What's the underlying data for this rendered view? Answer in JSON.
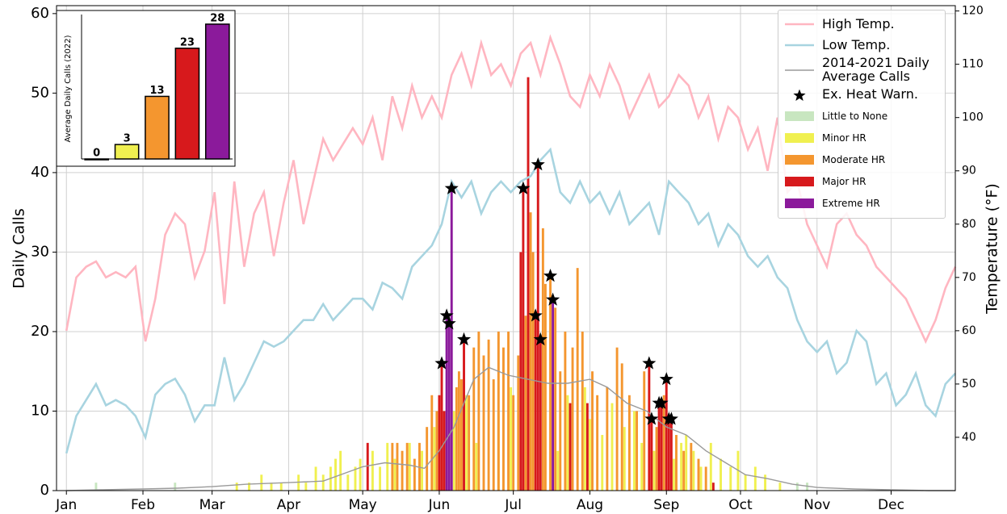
{
  "chart_data": [
    {
      "type": "bar",
      "ylabel": "Daily Calls",
      "y2label": "Temperature (°F)",
      "xlim": [
        -3,
        361
      ],
      "xticks": [
        {
          "value": 1,
          "label": "Jan"
        },
        {
          "value": 32,
          "label": "Feb"
        },
        {
          "value": 60,
          "label": "Mar"
        },
        {
          "value": 91,
          "label": "Apr"
        },
        {
          "value": 121,
          "label": "May"
        },
        {
          "value": 152,
          "label": "Jun"
        },
        {
          "value": 182,
          "label": "Jul"
        },
        {
          "value": 213,
          "label": "Aug"
        },
        {
          "value": 244,
          "label": "Sep"
        },
        {
          "value": 274,
          "label": "Oct"
        },
        {
          "value": 305,
          "label": "Nov"
        },
        {
          "value": 335,
          "label": "Dec"
        }
      ],
      "ylim": [
        0,
        61
      ],
      "yticks": [
        0,
        10,
        20,
        30,
        40,
        50,
        60
      ],
      "y2lim": [
        30,
        121
      ],
      "y2ticks": [
        40,
        50,
        60,
        70,
        80,
        90,
        100,
        110,
        120
      ],
      "grid": true,
      "legend": "upper right",
      "series": [
        {
          "name": "High Temp.",
          "type": "line",
          "axis": "y2",
          "color": "#ffb6c1",
          "x": [
            1,
            5,
            9,
            13,
            17,
            21,
            25,
            29,
            33,
            37,
            41,
            45,
            49,
            53,
            57,
            61,
            65,
            69,
            73,
            77,
            81,
            85,
            89,
            93,
            97,
            101,
            105,
            109,
            113,
            117,
            121,
            125,
            129,
            133,
            137,
            141,
            145,
            149,
            153,
            157,
            161,
            165,
            169,
            173,
            177,
            181,
            185,
            189,
            193,
            197,
            201,
            205,
            209,
            213,
            217,
            221,
            225,
            229,
            233,
            237,
            241,
            245,
            249,
            253,
            257,
            261,
            265,
            269,
            273,
            277,
            281,
            285,
            289,
            293,
            297,
            301,
            305,
            309,
            313,
            317,
            321,
            325,
            329,
            333,
            337,
            341,
            345,
            349,
            353,
            357,
            361
          ],
          "values": [
            60,
            70,
            72,
            73,
            70,
            71,
            70,
            72,
            58,
            66,
            78,
            82,
            80,
            70,
            75,
            86,
            65,
            88,
            72,
            82,
            86,
            74,
            84,
            92,
            80,
            88,
            96,
            92,
            95,
            98,
            95,
            100,
            92,
            104,
            98,
            106,
            100,
            104,
            100,
            108,
            112,
            106,
            114,
            108,
            110,
            106,
            112,
            114,
            108,
            115,
            110,
            104,
            102,
            108,
            104,
            110,
            106,
            100,
            104,
            108,
            102,
            104,
            108,
            106,
            100,
            104,
            96,
            102,
            100,
            94,
            98,
            90,
            100,
            86,
            88,
            80,
            76,
            72,
            80,
            82,
            78,
            76,
            72,
            70,
            68,
            66,
            62,
            58,
            62,
            68,
            72
          ]
        },
        {
          "name": "Low Temp.",
          "type": "line",
          "axis": "y2",
          "color": "#a8d4e0",
          "x": [
            1,
            5,
            9,
            13,
            17,
            21,
            25,
            29,
            33,
            37,
            41,
            45,
            49,
            53,
            57,
            61,
            65,
            69,
            73,
            77,
            81,
            85,
            89,
            93,
            97,
            101,
            105,
            109,
            113,
            117,
            121,
            125,
            129,
            133,
            137,
            141,
            145,
            149,
            153,
            157,
            161,
            165,
            169,
            173,
            177,
            181,
            185,
            189,
            193,
            197,
            201,
            205,
            209,
            213,
            217,
            221,
            225,
            229,
            233,
            237,
            241,
            245,
            249,
            253,
            257,
            261,
            265,
            269,
            273,
            277,
            281,
            285,
            289,
            293,
            297,
            301,
            305,
            309,
            313,
            317,
            321,
            325,
            329,
            333,
            337,
            341,
            345,
            349,
            353,
            357,
            361
          ],
          "values": [
            37,
            44,
            47,
            50,
            46,
            47,
            46,
            44,
            40,
            48,
            50,
            51,
            48,
            43,
            46,
            46,
            55,
            47,
            50,
            54,
            58,
            57,
            58,
            60,
            62,
            62,
            65,
            62,
            64,
            66,
            66,
            64,
            69,
            68,
            66,
            72,
            74,
            76,
            80,
            88,
            85,
            88,
            82,
            86,
            88,
            86,
            88,
            89,
            92,
            94,
            86,
            84,
            88,
            84,
            86,
            82,
            86,
            80,
            82,
            84,
            78,
            88,
            86,
            84,
            80,
            82,
            76,
            80,
            78,
            74,
            72,
            74,
            70,
            68,
            62,
            58,
            56,
            58,
            52,
            54,
            60,
            58,
            50,
            52,
            46,
            48,
            52,
            46,
            44,
            50,
            52
          ]
        },
        {
          "name": "2014-2021 Daily Average Calls",
          "type": "line",
          "color": "#9a9a9a",
          "x": [
            1,
            15,
            32,
            46,
            60,
            74,
            91,
            105,
            121,
            130,
            140,
            146,
            152,
            158,
            166,
            172,
            180,
            188,
            196,
            204,
            213,
            220,
            228,
            236,
            244,
            252,
            260,
            268,
            276,
            285,
            295,
            305,
            320,
            335,
            350,
            361
          ],
          "values": [
            0,
            0.1,
            0.2,
            0.3,
            0.5,
            0.8,
            1,
            1.2,
            3,
            3.5,
            3.2,
            2.8,
            5,
            8,
            14,
            15.5,
            14.5,
            14,
            13.5,
            13.5,
            14,
            13,
            11,
            10,
            8,
            7,
            5,
            3.5,
            2,
            1.5,
            0.8,
            0.4,
            0.2,
            0.1,
            0,
            0
          ]
        },
        {
          "name": "Ex. Heat Warn.",
          "type": "scatter",
          "color": "#000000",
          "x": [
            153,
            155,
            156,
            157,
            162,
            186,
            191,
            192,
            193,
            197,
            198,
            237,
            238,
            241,
            242,
            244,
            245,
            246
          ],
          "values": [
            16,
            22,
            21,
            38,
            19,
            38,
            22,
            41,
            19,
            27,
            24,
            16,
            9,
            11,
            11,
            14,
            9,
            9
          ]
        },
        {
          "name": "Little to None",
          "type": "bar",
          "color": "#c8e6c0",
          "x": [
            13,
            45,
            297,
            301
          ],
          "values": [
            1,
            1,
            1,
            1
          ]
        },
        {
          "name": "Minor HR",
          "type": "bar",
          "color": "#f0f050",
          "x": [
            70,
            75,
            80,
            84,
            88,
            95,
            98,
            102,
            105,
            108,
            110,
            112,
            115,
            118,
            120,
            125,
            128,
            131,
            134,
            140,
            145,
            150,
            158,
            163,
            167,
            176,
            181,
            200,
            204,
            211,
            213,
            218,
            222,
            227,
            231,
            234,
            239,
            247,
            250,
            252,
            255,
            258,
            262,
            266,
            270,
            273,
            276,
            280,
            284,
            290
          ],
          "values": [
            1,
            1,
            2,
            1,
            1,
            2,
            1,
            3,
            2,
            3,
            4,
            5,
            2,
            3,
            4,
            5,
            3,
            6,
            4,
            6,
            5,
            8,
            10,
            12,
            6,
            10,
            13,
            5,
            12,
            13,
            9,
            7,
            11,
            8,
            10,
            6,
            5,
            4,
            6,
            7,
            5,
            3,
            6,
            4,
            3,
            5,
            2,
            3,
            2,
            1
          ]
        },
        {
          "name": "Moderate HR",
          "type": "bar",
          "color": "#f4962f",
          "x": [
            133,
            135,
            137,
            139,
            142,
            144,
            147,
            149,
            151,
            159,
            160,
            161,
            164,
            166,
            168,
            170,
            172,
            174,
            176,
            178,
            180,
            182,
            184,
            187,
            189,
            190,
            194,
            195,
            197,
            199,
            201,
            203,
            206,
            208,
            210,
            214,
            216,
            220,
            224,
            226,
            229,
            232,
            235,
            240,
            243,
            248,
            251,
            254,
            257,
            260
          ],
          "values": [
            6,
            6,
            5,
            6,
            4,
            6,
            8,
            12,
            10,
            13,
            15,
            14,
            12,
            18,
            20,
            17,
            19,
            14,
            20,
            18,
            20,
            12,
            17,
            22,
            35,
            30,
            33,
            26,
            27,
            23,
            15,
            20,
            18,
            28,
            20,
            15,
            12,
            13,
            18,
            16,
            12,
            10,
            15,
            8,
            12,
            7,
            5,
            6,
            4,
            3
          ]
        },
        {
          "name": "Major HR",
          "type": "bar",
          "color": "#d7191c",
          "x": [
            123,
            152,
            153,
            154,
            162,
            185,
            186,
            188,
            191,
            192,
            193,
            205,
            212,
            237,
            238,
            241,
            242,
            244,
            245,
            246,
            263
          ],
          "values": [
            6,
            12,
            16,
            10,
            19,
            30,
            38,
            52,
            22,
            41,
            19,
            11,
            11,
            16,
            9,
            11,
            11,
            14,
            9,
            9,
            1
          ]
        },
        {
          "name": "Extreme HR",
          "type": "bar",
          "color": "#8b1a9b",
          "x": [
            155,
            156,
            157,
            198
          ],
          "values": [
            22,
            21,
            38,
            24
          ]
        }
      ]
    },
    {
      "type": "bar",
      "ylabel": "Average Daily Calls (2022)",
      "categories": [
        null,
        null,
        null,
        null,
        null
      ],
      "values": [
        0,
        3,
        13,
        23,
        28
      ],
      "colors": [
        "#c8e6c0",
        "#f0f050",
        "#f4962f",
        "#d7191c",
        "#8b1a9b"
      ],
      "ylim": [
        0,
        30
      ]
    }
  ]
}
